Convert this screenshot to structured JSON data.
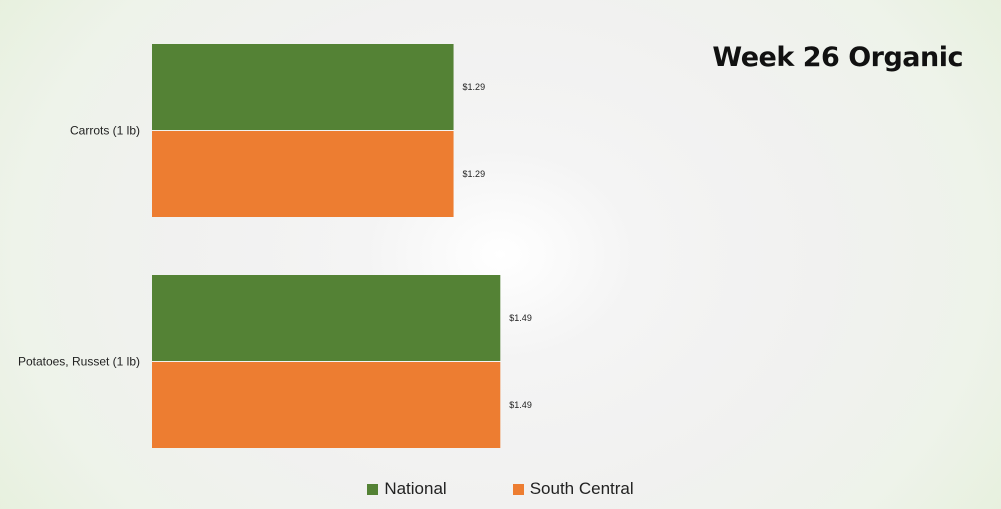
{
  "chart_data": {
    "type": "bar",
    "orientation": "horizontal",
    "title": "Week 26 Organic",
    "categories": [
      "Carrots (1 lb)",
      "Potatoes, Russet (1 lb)"
    ],
    "series": [
      {
        "name": "National",
        "color": "#548235",
        "values": [
          1.29,
          1.49
        ],
        "labels": [
          "$1.29",
          "$1.49"
        ]
      },
      {
        "name": "South Central",
        "color": "#ed7d31",
        "values": [
          1.29,
          1.49
        ],
        "labels": [
          "$1.29",
          "$1.49"
        ]
      }
    ],
    "xlim": [
      0,
      3.85
    ],
    "grid": false,
    "legend_position": "bottom"
  }
}
